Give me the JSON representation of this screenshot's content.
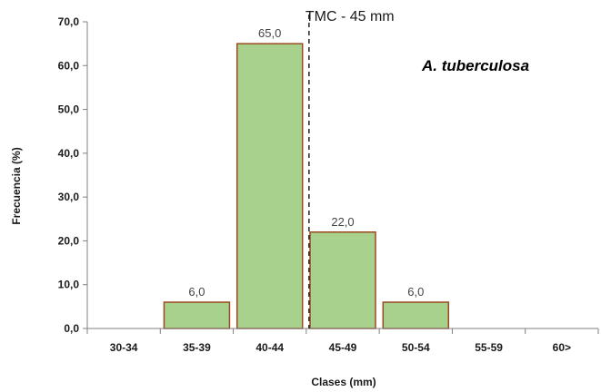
{
  "chart_data": {
    "type": "bar",
    "categories": [
      "30-34",
      "35-39",
      "40-44",
      "45-49",
      "50-54",
      "55-59",
      "60>"
    ],
    "values": [
      0,
      6.0,
      65.0,
      22.0,
      6.0,
      0,
      0
    ],
    "data_labels": [
      "",
      "6,0",
      "65,0",
      "22,0",
      "6,0",
      "",
      ""
    ],
    "xlabel": "Clases (mm)",
    "ylabel": "Frecuencia (%)",
    "ylim": [
      0,
      70
    ],
    "yticks": [
      "0,0",
      "10,0",
      "20,0",
      "30,0",
      "40,0",
      "50,0",
      "60,0",
      "70,0"
    ],
    "annotation": "A. tuberculosa",
    "marker": {
      "label": "TMC - 45 mm",
      "value": 45
    },
    "grid": false,
    "legend": "none",
    "colors": {
      "bar_fill": "#a9d18e",
      "bar_stroke": "#9b4a1e",
      "axis": "#808080"
    }
  }
}
